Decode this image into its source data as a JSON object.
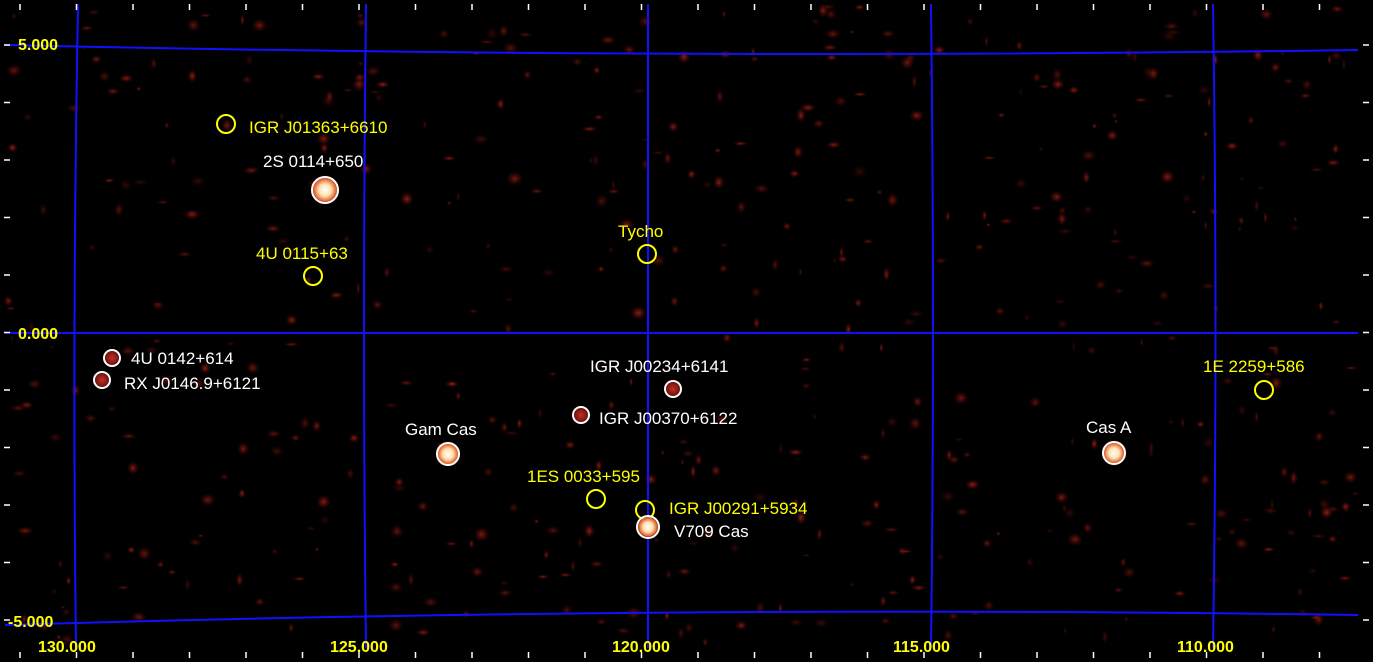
{
  "colors": {
    "background": "#000000",
    "grid": "#1010ff",
    "axis_labels": "#ffff00",
    "bright_source": "#ffffff",
    "faint_source": "#ffff00"
  },
  "axes": {
    "longitude_labels": [
      "130.000",
      "125.000",
      "120.000",
      "115.000",
      "110.000"
    ],
    "latitude_labels": [
      "5.000",
      "0.000",
      "-5.000"
    ],
    "longitude_values": [
      130,
      125,
      120,
      115,
      110
    ],
    "latitude_values": [
      5,
      0,
      -5
    ]
  },
  "sources": [
    {
      "name": "IGR J01363+6610",
      "l": 127.4,
      "b": 3.7,
      "color": "#ffff00",
      "kind": "faint"
    },
    {
      "name": "2S 0114+650",
      "l": 125.7,
      "b": 2.6,
      "color": "#ffffff",
      "kind": "bright"
    },
    {
      "name": "4U 0115+63",
      "l": 125.9,
      "b": 1.0,
      "color": "#ffff00",
      "kind": "faint"
    },
    {
      "name": "Tycho",
      "l": 120.1,
      "b": 1.4,
      "color": "#ffff00",
      "kind": "faint"
    },
    {
      "name": "4U 0142+614",
      "l": 129.4,
      "b": -0.4,
      "color": "#ffffff",
      "kind": "medium"
    },
    {
      "name": "RX J0146.9+6121",
      "l": 129.5,
      "b": -0.8,
      "color": "#ffffff",
      "kind": "medium"
    },
    {
      "name": "IGR J00234+6141",
      "l": 119.6,
      "b": -1.0,
      "color": "#ffffff",
      "kind": "medium"
    },
    {
      "name": "IGR J00370+6122",
      "l": 121.2,
      "b": -1.4,
      "color": "#ffffff",
      "kind": "medium"
    },
    {
      "name": "Gam Cas",
      "l": 123.6,
      "b": -2.1,
      "color": "#ffffff",
      "kind": "bright"
    },
    {
      "name": "1ES 0033+595",
      "l": 120.9,
      "b": -2.9,
      "color": "#ffff00",
      "kind": "faint"
    },
    {
      "name": "IGR J00291+5934",
      "l": 120.1,
      "b": -3.1,
      "color": "#ffff00",
      "kind": "faint"
    },
    {
      "name": "V709 Cas",
      "l": 120.0,
      "b": -3.4,
      "color": "#ffffff",
      "kind": "bright"
    },
    {
      "name": "Cas A",
      "l": 111.7,
      "b": -2.1,
      "color": "#ffffff",
      "kind": "bright"
    },
    {
      "name": "1E 2259+586",
      "l": 109.1,
      "b": -1.0,
      "color": "#ffff00",
      "kind": "faint"
    }
  ]
}
